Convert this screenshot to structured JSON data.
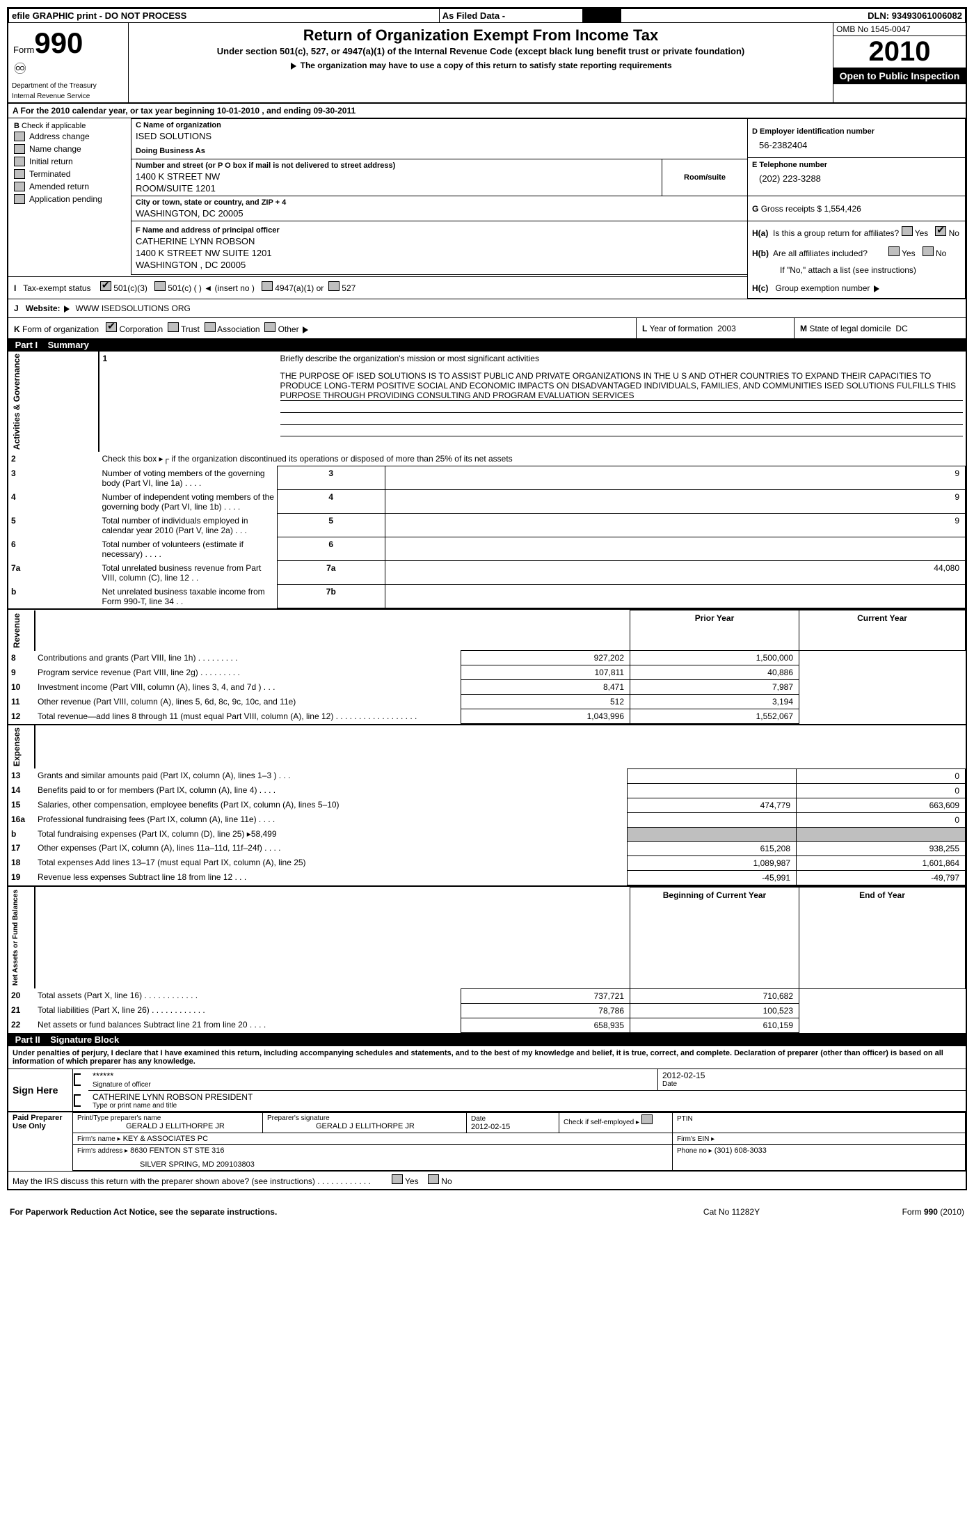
{
  "topbar": {
    "efile": "efile GRAPHIC print - DO NOT PROCESS",
    "asfiled": "As Filed Data -",
    "dln_label": "DLN:",
    "dln": "93493061006082"
  },
  "header": {
    "form_label": "Form",
    "form_no": "990",
    "dept1": "Department of the Treasury",
    "dept2": "Internal Revenue Service",
    "title": "Return of Organization Exempt From Income Tax",
    "sub1": "Under section 501(c), 527, or 4947(a)(1) of the Internal Revenue Code (except black lung benefit trust or private foundation)",
    "sub2": "The organization may have to use a copy of this return to satisfy state reporting requirements",
    "omb": "OMB No  1545-0047",
    "year": "2010",
    "open": "Open to Public Inspection"
  },
  "A": {
    "text1": "A  For the 2010 calendar year, or tax year beginning",
    "begin": "10-01-2010",
    "text2": ", and ending",
    "end": "09-30-2011"
  },
  "B": {
    "label": "B",
    "check_if": "Check if applicable",
    "items": [
      "Address change",
      "Name change",
      "Initial return",
      "Terminated",
      "Amended return",
      "Application pending"
    ]
  },
  "C": {
    "name_label": "C Name of organization",
    "name": "ISED SOLUTIONS",
    "dba_label": "Doing Business As",
    "dba": "",
    "street_label": "Number and street (or P O  box if mail is not delivered to street address)",
    "street1": "1400 K STREET NW",
    "street2": "ROOM/SUITE 1201",
    "room_label": "Room/suite",
    "city_label": "City or town, state or country, and ZIP + 4",
    "city": "WASHINGTON, DC  20005"
  },
  "D": {
    "label": "D Employer identification number",
    "val": "56-2382404"
  },
  "E": {
    "label": "E Telephone number",
    "val": "(202) 223-3288"
  },
  "G": {
    "label": "G",
    "text": "Gross receipts $",
    "val": "1,554,426"
  },
  "F": {
    "label": "F    Name and address of principal officer",
    "name": "CATHERINE LYNN ROBSON",
    "addr1": "1400 K STREET NW SUITE 1201",
    "addr2": "WASHINGTON , DC  20005"
  },
  "H": {
    "a": "Is this a group return for affiliates?",
    "b": "Are all affiliates included?",
    "b2": "If \"No,\" attach a list  (see instructions)",
    "c": "Group exemption number",
    "yes": "Yes",
    "no": "No"
  },
  "I": {
    "label": "I",
    "text": "Tax-exempt status",
    "o1": "501(c)(3)",
    "o2": "501(c) (   )",
    "ins": "(insert no )",
    "o3": "4947(a)(1) or",
    "o4": "527"
  },
  "J": {
    "label": "J",
    "text": "Website:",
    "val": "WWW ISEDSOLUTIONS ORG"
  },
  "K": {
    "label": "K",
    "text": "Form of organization",
    "opts": [
      "Corporation",
      "Trust",
      "Association",
      "Other"
    ]
  },
  "L": {
    "label": "L",
    "text": "Year of formation",
    "val": "2003"
  },
  "M": {
    "label": "M",
    "text": "State of legal domicile",
    "val": "DC"
  },
  "part1": {
    "label": "Part I",
    "title": "Summary"
  },
  "mission": {
    "l1_label": "1",
    "l1_text": "Briefly describe the organization's mission or most significant activities",
    "text": "THE PURPOSE OF ISED SOLUTIONS IS TO ASSIST PUBLIC AND PRIVATE ORGANIZATIONS IN THE U S  AND OTHER COUNTRIES TO EXPAND THEIR CAPACITIES TO PRODUCE LONG-TERM POSITIVE SOCIAL AND ECONOMIC IMPACTS ON DISADVANTAGED INDIVIDUALS, FAMILIES, AND COMMUNITIES  ISED SOLUTIONS FULFILLS THIS PURPOSE THROUGH PROVIDING CONSULTING AND PROGRAM EVALUATION SERVICES"
  },
  "gov_lines": [
    {
      "n": "2",
      "t": "Check this box ▸┌ if the organization discontinued its operations or disposed of more than 25% of its net assets",
      "box": "",
      "v": ""
    },
    {
      "n": "3",
      "t": "Number of voting members of the governing body (Part VI, line 1a)    .    .    .    .",
      "box": "3",
      "v": "9"
    },
    {
      "n": "4",
      "t": "Number of independent voting members of the governing body (Part VI, line 1b)    .    .    .    .",
      "box": "4",
      "v": "9"
    },
    {
      "n": "5",
      "t": "Total number of individuals employed in calendar year 2010 (Part V, line 2a)    .    .    .",
      "box": "5",
      "v": "9"
    },
    {
      "n": "6",
      "t": "Total number of volunteers (estimate if necessary)    .    .    .    .",
      "box": "6",
      "v": ""
    },
    {
      "n": "7a",
      "t": "Total unrelated business revenue from Part VIII, column (C), line 12   .    .",
      "box": "7a",
      "v": "44,080"
    },
    {
      "n": "b",
      "t": "Net unrelated business taxable income from Form 990-T, line 34   .    .",
      "box": "7b",
      "v": ""
    }
  ],
  "col_headers": {
    "prior": "Prior Year",
    "current": "Current Year"
  },
  "revenue": [
    {
      "n": "8",
      "t": "Contributions and grants (Part VIII, line 1h)    .    .    .    .    .    .    .    .    .",
      "p": "927,202",
      "c": "1,500,000"
    },
    {
      "n": "9",
      "t": "Program service revenue (Part VIII, line 2g)    .    .    .    .    .    .    .    .    .",
      "p": "107,811",
      "c": "40,886"
    },
    {
      "n": "10",
      "t": "Investment income (Part VIII, column (A), lines 3, 4, and 7d )    .    .    .",
      "p": "8,471",
      "c": "7,987"
    },
    {
      "n": "11",
      "t": "Other revenue (Part VIII, column (A), lines 5, 6d, 8c, 9c, 10c, and 11e)",
      "p": "512",
      "c": "3,194"
    },
    {
      "n": "12",
      "t": "Total revenue—add lines 8 through 11 (must equal Part VIII, column (A), line 12)    .    .    .    .    .    .    .    .    .    .    .    .    .    .    .    .    .    .",
      "p": "1,043,996",
      "c": "1,552,067"
    }
  ],
  "expenses": [
    {
      "n": "13",
      "t": "Grants and similar amounts paid (Part IX, column (A), lines 1–3 )   .    .    .",
      "p": "",
      "c": "0"
    },
    {
      "n": "14",
      "t": "Benefits paid to or for members (Part IX, column (A), line 4)    .    .    .    .",
      "p": "",
      "c": "0"
    },
    {
      "n": "15",
      "t": "Salaries, other compensation, employee benefits (Part IX, column (A), lines 5–10)",
      "p": "474,779",
      "c": "663,609"
    },
    {
      "n": "16a",
      "t": "Professional fundraising fees (Part IX, column (A), line 11e)    .    .    .    .",
      "p": "",
      "c": "0"
    },
    {
      "n": "b",
      "t": "Total fundraising expenses (Part IX, column (D), line 25) ▸58,499",
      "p": "grey",
      "c": "grey"
    },
    {
      "n": "17",
      "t": "Other expenses (Part IX, column (A), lines 11a–11d, 11f–24f)    .    .    .    .",
      "p": "615,208",
      "c": "938,255"
    },
    {
      "n": "18",
      "t": "Total expenses  Add lines 13–17 (must equal Part IX, column (A), line 25)",
      "p": "1,089,987",
      "c": "1,601,864"
    },
    {
      "n": "19",
      "t": "Revenue less expenses  Subtract line 18 from line 12    .    .    .",
      "p": "-45,991",
      "c": "-49,797"
    }
  ],
  "na_headers": {
    "begin": "Beginning of Current Year",
    "end": "End of Year"
  },
  "netassets": [
    {
      "n": "20",
      "t": "Total assets (Part X, line 16)  .    .    .    .    .    .    .    .    .    .    .    .",
      "p": "737,721",
      "c": "710,682"
    },
    {
      "n": "21",
      "t": "Total liabilities (Part X, line 26)  .    .    .    .    .    .    .    .    .    .    .    .",
      "p": "78,786",
      "c": "100,523"
    },
    {
      "n": "22",
      "t": "Net assets or fund balances  Subtract line 21 from line 20    .    .    .    .",
      "p": "658,935",
      "c": "610,159"
    }
  ],
  "part2": {
    "label": "Part II",
    "title": "Signature Block"
  },
  "perjury": "Under penalties of perjury, I declare that I have examined this return, including accompanying schedules and statements, and to the best of my knowledge and belief, it is true, correct, and complete. Declaration of preparer (other than officer) is based on all information of which preparer has any knowledge.",
  "sign": {
    "here": "Sign Here",
    "stars": "******",
    "sig_label": "Signature of officer",
    "date": "2012-02-15",
    "date_label": "Date",
    "name": "CATHERINE LYNN ROBSON PRESIDENT",
    "name_label": "Type or print name and title"
  },
  "preparer": {
    "left": "Paid Preparer Use Only",
    "pt": "Print/Type preparer's name",
    "pname": "GERALD J ELLITHORPE JR",
    "psig_label": "Preparer's signature",
    "psig": "GERALD J ELLITHORPE JR",
    "pdate_label": "Date",
    "pdate": "2012-02-15",
    "self": "Check if self-employed ▸",
    "ptin": "PTIN",
    "firm_label": "Firm's name    ▸",
    "firm": "KEY & ASSOCIATES PC",
    "ein_label": "Firm's EIN   ▸",
    "addr_label": "Firm's address ▸",
    "addr1": "8630 FENTON ST STE 316",
    "addr2": "SILVER SPRING, MD  209103803",
    "phone_label": "Phone no  ▸",
    "phone": "(301) 608-3033"
  },
  "discuss": "May the IRS discuss this return with the preparer shown above? (see instructions)   .    .    .    .    .    .    .    .    .    .    .    .",
  "footer": {
    "left": "For Paperwork Reduction Act Notice, see the separate instructions.",
    "mid": "Cat No  11282Y",
    "right": "Form 990 (2010)"
  },
  "side_labels": {
    "ag": "Activities & Governance",
    "rev": "Revenue",
    "exp": "Expenses",
    "na": "Net Assets or Fund Balances"
  }
}
